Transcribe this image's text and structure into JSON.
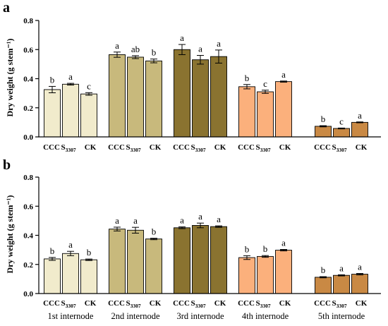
{
  "chart_data": [
    {
      "type": "bar",
      "panel": "a",
      "ylabel": "Dry weight (g stem⁻¹)",
      "ylim": [
        0,
        0.8
      ],
      "yticks": [
        "0.0",
        "0.2",
        "0.4",
        "0.6",
        "0.8"
      ],
      "groups": [
        {
          "bars": [
            {
              "treatment": "CCC",
              "value": 0.325,
              "error": 0.022,
              "letter": "b"
            },
            {
              "treatment": "S3307",
              "value": 0.362,
              "error": 0.006,
              "letter": "a"
            },
            {
              "treatment": "CK",
              "value": 0.295,
              "error": 0.009,
              "letter": "c"
            }
          ]
        },
        {
          "bars": [
            {
              "treatment": "CCC",
              "value": 0.565,
              "error": 0.018,
              "letter": "a"
            },
            {
              "treatment": "S3307",
              "value": 0.548,
              "error": 0.01,
              "letter": "ab"
            },
            {
              "treatment": "CK",
              "value": 0.522,
              "error": 0.013,
              "letter": "b"
            }
          ]
        },
        {
          "bars": [
            {
              "treatment": "CCC",
              "value": 0.6,
              "error": 0.035,
              "letter": "a"
            },
            {
              "treatment": "S3307",
              "value": 0.53,
              "error": 0.03,
              "letter": "a"
            },
            {
              "treatment": "CK",
              "value": 0.552,
              "error": 0.045,
              "letter": "a"
            }
          ]
        },
        {
          "bars": [
            {
              "treatment": "CCC",
              "value": 0.345,
              "error": 0.015,
              "letter": "b"
            },
            {
              "treatment": "S3307",
              "value": 0.31,
              "error": 0.011,
              "letter": "c"
            },
            {
              "treatment": "CK",
              "value": 0.38,
              "error": 0.004,
              "letter": "a"
            }
          ]
        },
        {
          "bars": [
            {
              "treatment": "CCC",
              "value": 0.073,
              "error": 0.004,
              "letter": "b"
            },
            {
              "treatment": "S3307",
              "value": 0.058,
              "error": 0.003,
              "letter": "c"
            },
            {
              "treatment": "CK",
              "value": 0.1,
              "error": 0.003,
              "letter": "a"
            }
          ]
        }
      ]
    },
    {
      "type": "bar",
      "panel": "b",
      "ylabel": "Dry weight (g stem⁻¹)",
      "ylim": [
        0,
        0.8
      ],
      "yticks": [
        "0.0",
        "0.2",
        "0.4",
        "0.6",
        "0.8"
      ],
      "groups": [
        {
          "name": "1st internode",
          "bars": [
            {
              "treatment": "CCC",
              "value": 0.238,
              "error": 0.01,
              "letter": "b"
            },
            {
              "treatment": "S3307",
              "value": 0.275,
              "error": 0.015,
              "letter": "a"
            },
            {
              "treatment": "CK",
              "value": 0.232,
              "error": 0.005,
              "letter": "b"
            }
          ]
        },
        {
          "name": "2nd internode",
          "bars": [
            {
              "treatment": "CCC",
              "value": 0.443,
              "error": 0.013,
              "letter": "a"
            },
            {
              "treatment": "S3307",
              "value": 0.435,
              "error": 0.02,
              "letter": "a"
            },
            {
              "treatment": "CK",
              "value": 0.375,
              "error": 0.005,
              "letter": "b"
            }
          ]
        },
        {
          "name": "3rd internode",
          "bars": [
            {
              "treatment": "CCC",
              "value": 0.452,
              "error": 0.006,
              "letter": "a"
            },
            {
              "treatment": "S3307",
              "value": 0.468,
              "error": 0.016,
              "letter": "a"
            },
            {
              "treatment": "CK",
              "value": 0.46,
              "error": 0.005,
              "letter": "a"
            }
          ]
        },
        {
          "name": "4th internode",
          "bars": [
            {
              "treatment": "CCC",
              "value": 0.247,
              "error": 0.013,
              "letter": "b"
            },
            {
              "treatment": "S3307",
              "value": 0.255,
              "error": 0.006,
              "letter": "b"
            },
            {
              "treatment": "CK",
              "value": 0.298,
              "error": 0.005,
              "letter": "a"
            }
          ]
        },
        {
          "name": "5th internode",
          "bars": [
            {
              "treatment": "CCC",
              "value": 0.112,
              "error": 0.004,
              "letter": "b"
            },
            {
              "treatment": "S3307",
              "value": 0.125,
              "error": 0.004,
              "letter": "a"
            },
            {
              "treatment": "CK",
              "value": 0.133,
              "error": 0.005,
              "letter": "a"
            }
          ]
        }
      ]
    }
  ],
  "group_colors": [
    "#f1ebcc",
    "#c8b97c",
    "#8a7330",
    "#fbb07c",
    "#c98944"
  ],
  "x_tick_labels": {
    "ccc": "CCC",
    "s3307_main": "S",
    "s3307_sub": "3307",
    "ck": "CK"
  }
}
